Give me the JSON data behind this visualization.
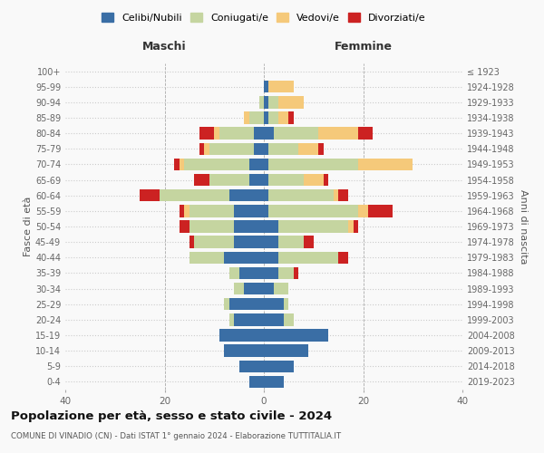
{
  "age_groups": [
    "0-4",
    "5-9",
    "10-14",
    "15-19",
    "20-24",
    "25-29",
    "30-34",
    "35-39",
    "40-44",
    "45-49",
    "50-54",
    "55-59",
    "60-64",
    "65-69",
    "70-74",
    "75-79",
    "80-84",
    "85-89",
    "90-94",
    "95-99",
    "100+"
  ],
  "birth_years": [
    "2019-2023",
    "2014-2018",
    "2009-2013",
    "2004-2008",
    "1999-2003",
    "1994-1998",
    "1989-1993",
    "1984-1988",
    "1979-1983",
    "1974-1978",
    "1969-1973",
    "1964-1968",
    "1959-1963",
    "1954-1958",
    "1949-1953",
    "1944-1948",
    "1939-1943",
    "1934-1938",
    "1929-1933",
    "1924-1928",
    "≤ 1923"
  ],
  "colors": {
    "celibi": "#3A6EA5",
    "coniugati": "#C5D5A0",
    "vedovi": "#F5C97A",
    "divorziati": "#CC2222"
  },
  "males": {
    "celibi": [
      3,
      5,
      8,
      9,
      6,
      7,
      4,
      5,
      8,
      6,
      6,
      6,
      7,
      3,
      3,
      2,
      2,
      0,
      0,
      0,
      0
    ],
    "coniugati": [
      0,
      0,
      0,
      0,
      1,
      1,
      2,
      2,
      7,
      8,
      9,
      9,
      14,
      8,
      13,
      9,
      7,
      3,
      1,
      0,
      0
    ],
    "vedovi": [
      0,
      0,
      0,
      0,
      0,
      0,
      0,
      0,
      0,
      0,
      0,
      1,
      0,
      0,
      1,
      1,
      1,
      1,
      0,
      0,
      0
    ],
    "divorziati": [
      0,
      0,
      0,
      0,
      0,
      0,
      0,
      0,
      0,
      1,
      2,
      1,
      4,
      3,
      1,
      1,
      3,
      0,
      0,
      0,
      0
    ]
  },
  "females": {
    "celibi": [
      4,
      6,
      9,
      13,
      4,
      4,
      2,
      3,
      3,
      3,
      3,
      1,
      1,
      1,
      1,
      1,
      2,
      1,
      1,
      1,
      0
    ],
    "coniugati": [
      0,
      0,
      0,
      0,
      2,
      1,
      3,
      3,
      12,
      5,
      14,
      18,
      13,
      7,
      18,
      6,
      9,
      2,
      2,
      0,
      0
    ],
    "vedovi": [
      0,
      0,
      0,
      0,
      0,
      0,
      0,
      0,
      0,
      0,
      1,
      2,
      1,
      4,
      11,
      4,
      8,
      2,
      5,
      5,
      0
    ],
    "divorziati": [
      0,
      0,
      0,
      0,
      0,
      0,
      0,
      1,
      2,
      2,
      1,
      5,
      2,
      1,
      0,
      1,
      3,
      1,
      0,
      0,
      0
    ]
  },
  "title": "Popolazione per età, sesso e stato civile - 2024",
  "subtitle": "COMUNE DI VINADIO (CN) - Dati ISTAT 1° gennaio 2024 - Elaborazione TUTTITALIA.IT",
  "xlabel_left": "Maschi",
  "xlabel_right": "Femmine",
  "ylabel_left": "Fasce di età",
  "ylabel_right": "Anni di nascita",
  "xlim": 40,
  "background_color": "#f9f9f9"
}
